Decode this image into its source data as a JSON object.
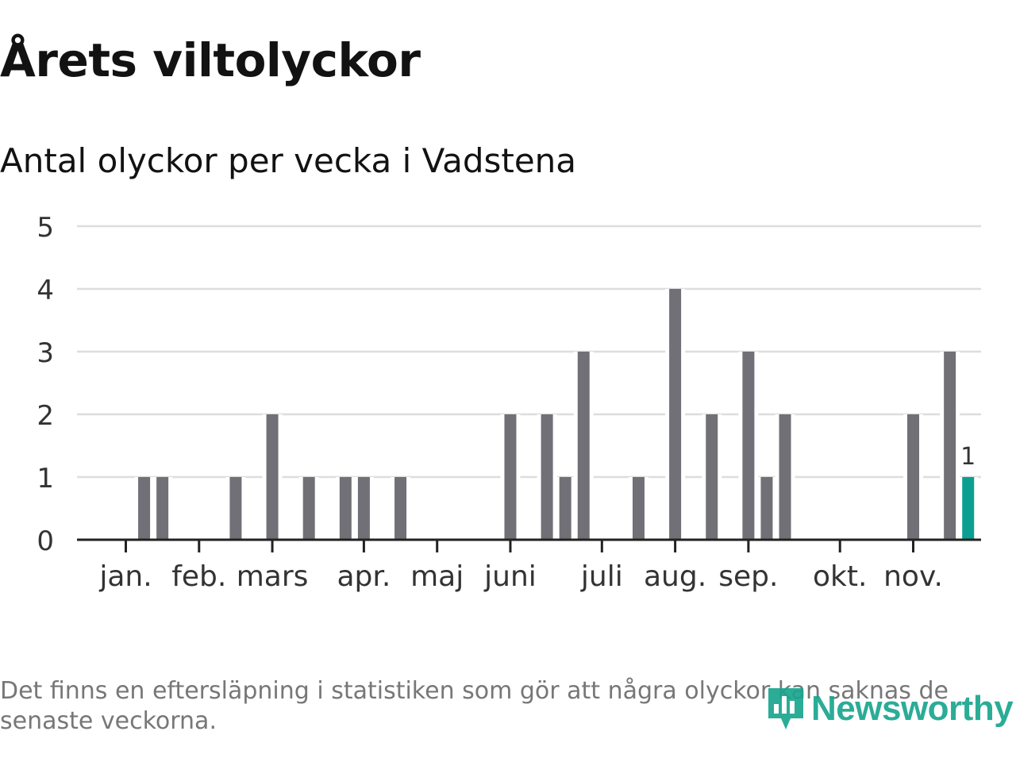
{
  "header": {
    "title": "Årets viltolyckor",
    "subtitle": "Antal olyckor per vecka i Vadstena"
  },
  "chart_data": {
    "type": "bar",
    "title": "Årets viltolyckor",
    "subtitle": "Antal olyckor per vecka i Vadstena",
    "xlabel": "",
    "ylabel": "",
    "ylim": [
      0,
      5
    ],
    "yticks": [
      0,
      1,
      2,
      3,
      4,
      5
    ],
    "grid": true,
    "x_unit": "week",
    "weeks": [
      1,
      2,
      3,
      4,
      5,
      6,
      7,
      8,
      9,
      10,
      11,
      12,
      13,
      14,
      15,
      16,
      17,
      18,
      19,
      20,
      21,
      22,
      23,
      24,
      25,
      26,
      27,
      28,
      29,
      30,
      31,
      32,
      33,
      34,
      35,
      36,
      37,
      38,
      39,
      40,
      41,
      42,
      43,
      44,
      45,
      46,
      47
    ],
    "values": [
      0,
      1,
      1,
      0,
      0,
      0,
      1,
      0,
      2,
      0,
      1,
      0,
      1,
      1,
      0,
      1,
      0,
      0,
      0,
      0,
      0,
      2,
      0,
      2,
      1,
      3,
      0,
      0,
      1,
      0,
      4,
      0,
      2,
      0,
      3,
      1,
      2,
      0,
      0,
      0,
      0,
      0,
      0,
      2,
      0,
      3,
      1
    ],
    "month_ticks": [
      {
        "label": "jan.",
        "week": 1.0
      },
      {
        "label": "feb.",
        "week": 5.0
      },
      {
        "label": "mars",
        "week": 9.0
      },
      {
        "label": "apr.",
        "week": 14.0
      },
      {
        "label": "maj",
        "week": 18.0
      },
      {
        "label": "juni",
        "week": 22.0
      },
      {
        "label": "juli",
        "week": 27.0
      },
      {
        "label": "aug.",
        "week": 31.0
      },
      {
        "label": "sep.",
        "week": 35.0
      },
      {
        "label": "okt.",
        "week": 40.0
      },
      {
        "label": "nov.",
        "week": 44.0
      }
    ],
    "highlight": {
      "week": 47,
      "value": 1,
      "label": "1"
    },
    "colors": {
      "bar": "#717076",
      "highlight": "#0c9f91",
      "grid": "#dddddd",
      "axis": "#222222",
      "text": "#333333"
    }
  },
  "footer": {
    "note": "Det finns en eftersläpning i statistiken som gör att några olyckor kan saknas de senaste veckorna.",
    "brand": "Newsworthy",
    "brand_color": "#1aa58f",
    "logo_icon": "newsworthy-bar-chart-icon"
  }
}
